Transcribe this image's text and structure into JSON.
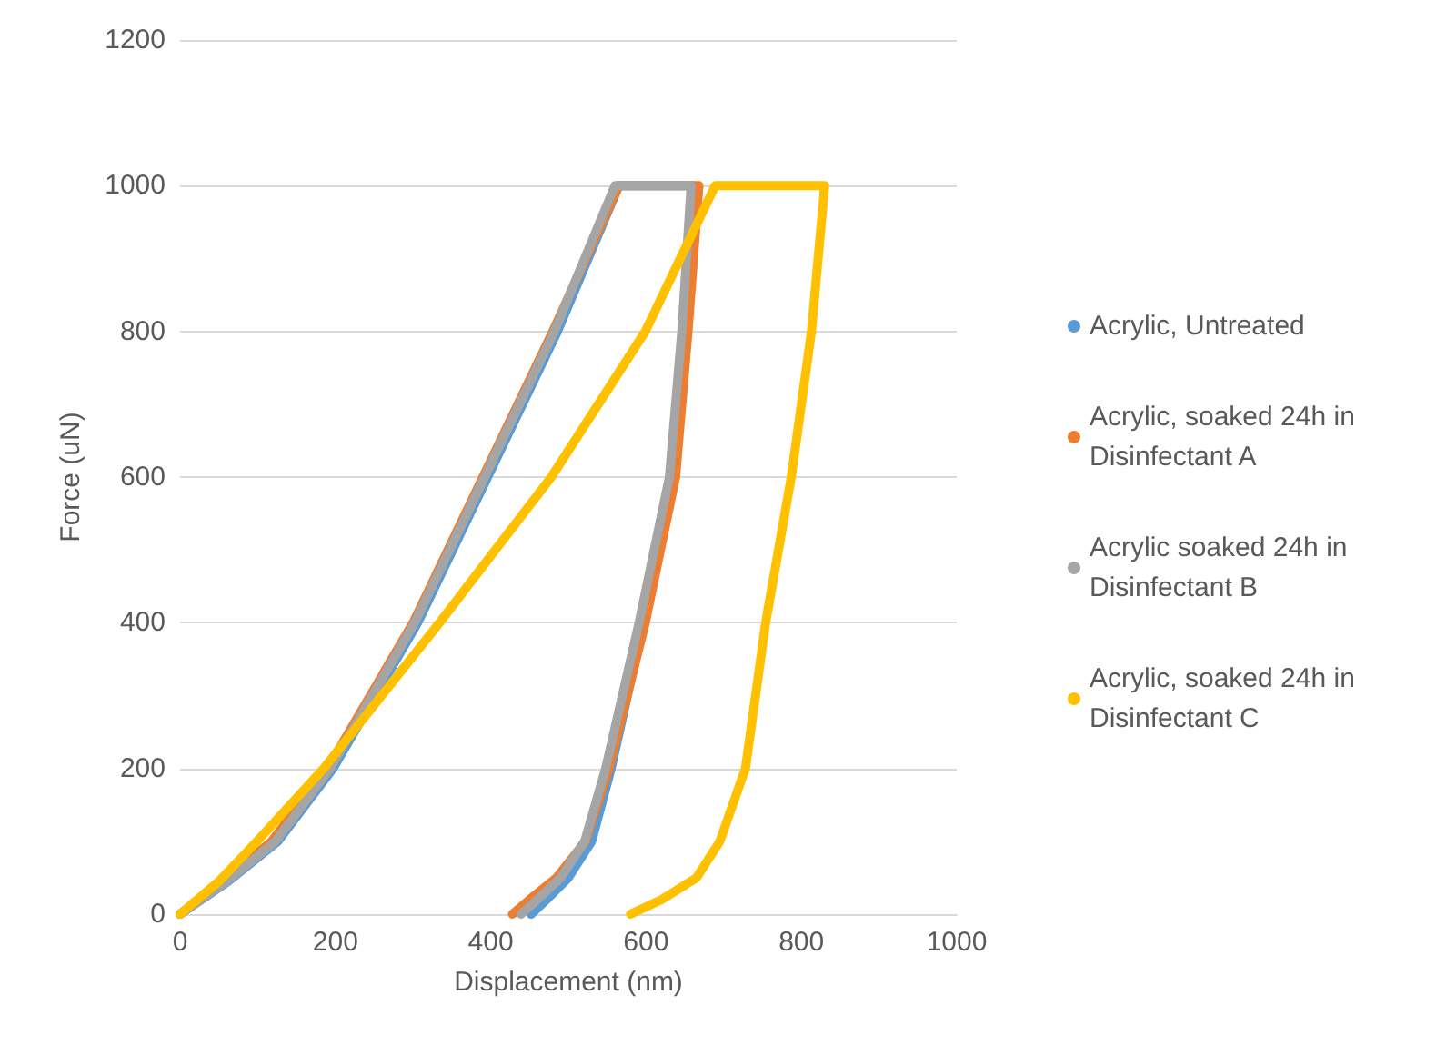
{
  "chart_data": {
    "type": "line",
    "xlabel": "Displacement (nm)",
    "ylabel": "Force (uN)",
    "xlim": [
      0,
      1000
    ],
    "xticks": [
      0,
      200,
      400,
      600,
      800,
      1000
    ],
    "ylim": [
      0,
      1200
    ],
    "yticks": [
      0,
      200,
      400,
      600,
      800,
      1000,
      1200
    ],
    "grid": "y",
    "legend": "right",
    "marker": "none",
    "line_style": "solid",
    "series": [
      {
        "name": "Acrylic, Untreated",
        "color": "#5b9bd5",
        "x": [
          0,
          62,
          126,
          197,
          306,
          396,
          486,
          565,
          660,
          650,
          635,
          597,
          555,
          530,
          500,
          472,
          452
        ],
        "values": [
          0,
          45,
          100,
          200,
          400,
          600,
          800,
          1000,
          1000,
          800,
          600,
          400,
          200,
          100,
          50,
          20,
          0
        ]
      },
      {
        "name": "Acrylic, soaked 24h in Disinfectant A",
        "color": "#ed7d31",
        "x": [
          0,
          55,
          118,
          190,
          300,
          390,
          480,
          565,
          668,
          654,
          638,
          599,
          552,
          522,
          485,
          450,
          428
        ],
        "values": [
          0,
          45,
          100,
          200,
          400,
          600,
          800,
          1000,
          1000,
          800,
          600,
          400,
          200,
          100,
          50,
          20,
          0
        ]
      },
      {
        "name": "Acrylic soaked 24h in Disinfectant B",
        "color": "#a5a5a5",
        "x": [
          0,
          60,
          123,
          193,
          302,
          392,
          482,
          560,
          658,
          646,
          630,
          591,
          548,
          521,
          490,
          460,
          439
        ],
        "values": [
          0,
          45,
          100,
          200,
          400,
          600,
          800,
          1000,
          1000,
          800,
          600,
          400,
          200,
          100,
          50,
          20,
          0
        ]
      },
      {
        "name": "Acrylic, soaked 24h in Disinfectant C",
        "color": "#ffc000",
        "x": [
          0,
          50,
          99,
          185,
          334,
          478,
          599,
          689,
          830,
          813,
          787,
          754,
          728,
          695,
          665,
          620,
          580
        ],
        "values": [
          0,
          45,
          100,
          200,
          400,
          600,
          800,
          1000,
          1000,
          800,
          600,
          400,
          200,
          100,
          50,
          20,
          0
        ]
      }
    ]
  }
}
